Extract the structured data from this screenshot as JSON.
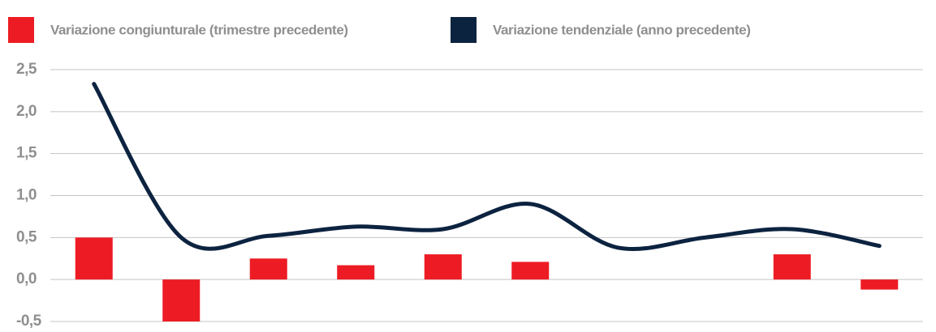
{
  "chart_data": {
    "type": "bar_line",
    "categories": [
      null,
      null,
      null,
      null,
      null,
      null,
      null,
      null,
      null,
      null
    ],
    "series": [
      {
        "name": "Variazione congiunturale (trimestre precedente)",
        "type": "bar",
        "color": "#ed1c24",
        "values": [
          0.5,
          -0.5,
          0.25,
          0.17,
          0.3,
          0.21,
          null,
          null,
          0.3,
          -0.12
        ]
      },
      {
        "name": "Variazione tendenziale (anno precedente)",
        "type": "line",
        "color": "#0c2340",
        "values": [
          2.33,
          0.5,
          0.52,
          0.63,
          0.6,
          0.9,
          0.38,
          0.5,
          0.6,
          0.4
        ]
      }
    ],
    "ylim": [
      -0.5,
      2.5
    ],
    "yticks": [
      {
        "value": -0.5,
        "label": "-0,5"
      },
      {
        "value": 0,
        "label": "0,0"
      },
      {
        "value": 0.5,
        "label": "0,5"
      },
      {
        "value": 1,
        "label": "1,0"
      },
      {
        "value": 1.5,
        "label": "1,5"
      },
      {
        "value": 2,
        "label": "2,0"
      },
      {
        "value": 2.5,
        "label": "2,5"
      }
    ],
    "grid": true,
    "legend": "top"
  }
}
